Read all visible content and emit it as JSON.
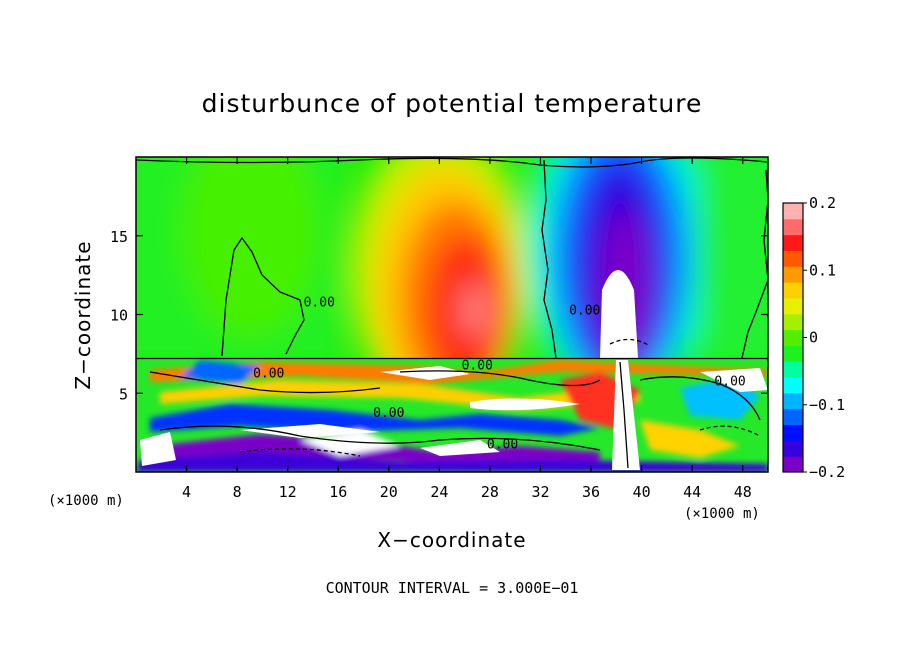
{
  "chart_data": {
    "type": "heatmap",
    "title": "disturbunce of potential temperature",
    "xlabel": "X−coordinate",
    "ylabel": "Z−coordinate",
    "x_unit": "(×1000 m)",
    "y_unit": "(×1000 m)",
    "xlim": [
      0,
      50
    ],
    "ylim": [
      0,
      20
    ],
    "x_ticks": [
      4,
      8,
      12,
      16,
      20,
      24,
      28,
      32,
      36,
      40,
      44,
      48
    ],
    "y_ticks": [
      5,
      10,
      15
    ],
    "colorbar": {
      "range": [
        -0.2,
        0.2
      ],
      "tick_values": [
        0.2,
        0.1,
        0,
        -0.1,
        -0.2
      ],
      "tick_labels": [
        "0.2",
        "0.1",
        "0",
        "−0.1",
        "−0.2"
      ],
      "colors": [
        "#7a00c8",
        "#3700e0",
        "#0010ff",
        "#0066ff",
        "#00b4ff",
        "#00ffff",
        "#00ffa0",
        "#1ef21e",
        "#55ee00",
        "#a6ef00",
        "#e8f000",
        "#ffd000",
        "#ff9a00",
        "#ff5a00",
        "#ff1818",
        "#ff6a6a",
        "#ffb0b0"
      ]
    },
    "contour_labels": [
      {
        "text": "0.00",
        "x": 10.5,
        "y": 6.0
      },
      {
        "text": "0.00",
        "x": 20.0,
        "y": 3.5
      },
      {
        "text": "0.00",
        "x": 27.0,
        "y": 6.5
      },
      {
        "text": "0.00",
        "x": 29.0,
        "y": 1.5
      },
      {
        "text": "0.00",
        "x": 35.5,
        "y": 10.0
      },
      {
        "text": "0.00",
        "x": 47.0,
        "y": 5.5
      },
      {
        "text": "0.00",
        "x": 14.5,
        "y": 10.5
      }
    ],
    "contour_interval_text": "CONTOUR INTERVAL = 3.000E−01"
  }
}
